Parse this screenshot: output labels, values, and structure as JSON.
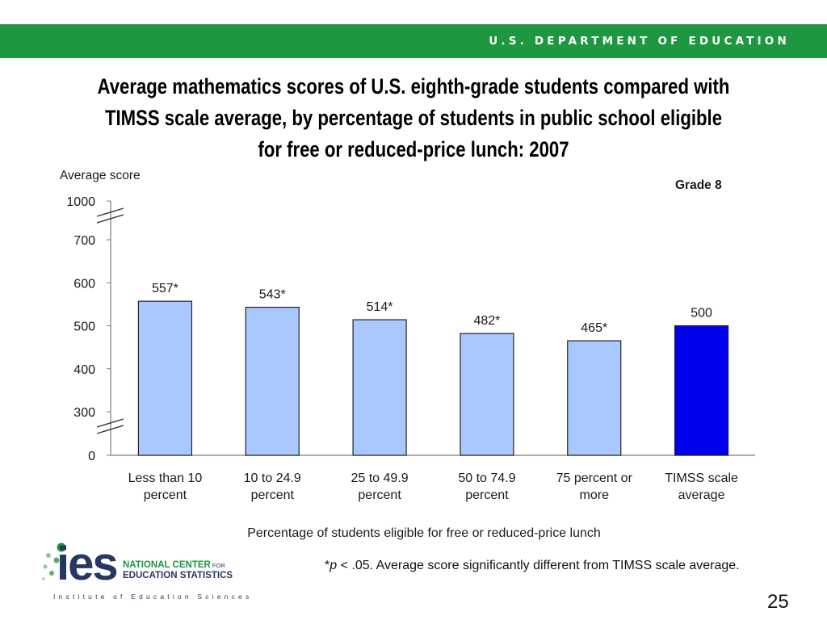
{
  "header": {
    "department": "U.S. DEPARTMENT OF EDUCATION"
  },
  "slide": {
    "title_lines": [
      "Average mathematics scores of U.S. eighth-grade students compared with",
      "TIMSS scale average, by percentage of students in public school eligible",
      "for free or reduced-price lunch: 2007"
    ],
    "footnote_symbol": "*",
    "footnote_p": "p",
    "footnote_rest": " < .05. Average score significantly different from TIMSS scale average.",
    "page_number": "25"
  },
  "logo": {
    "letters": "ies",
    "line1_main": "NATIONAL CENTER",
    "line1_small": " FOR",
    "line2": "EDUCATION STATISTICS",
    "tagline": "Institute of Education Sciences",
    "colors": {
      "navy": "#28375f",
      "green": "#1f9640"
    }
  },
  "colors": {
    "band_green": "#1f9640",
    "bar_fill": "#a8c8ff",
    "bar_highlight": "#0000ee",
    "axis": "#7a7a7a"
  },
  "chart_data": {
    "type": "bar",
    "ylabel": "Average score",
    "xlabel": "Percentage of students eligible for free or reduced-price lunch",
    "annotation": "Grade 8",
    "yticks": [
      0,
      300,
      400,
      500,
      600,
      700,
      1000
    ],
    "axis_breaks": [
      "between 0 and 300",
      "between 700 and 1000"
    ],
    "categories": [
      [
        "Less than 10",
        "percent"
      ],
      [
        "10 to 24.9",
        "percent"
      ],
      [
        "25 to 49.9",
        "percent"
      ],
      [
        "50 to 74.9",
        "percent"
      ],
      [
        "75 percent or",
        "more"
      ],
      [
        "TIMSS scale",
        "average"
      ]
    ],
    "values": [
      557,
      543,
      514,
      482,
      465,
      500
    ],
    "data_labels": [
      "557*",
      "543*",
      "514*",
      "482*",
      "465*",
      "500"
    ],
    "highlighted_index": 5,
    "grid": false
  }
}
